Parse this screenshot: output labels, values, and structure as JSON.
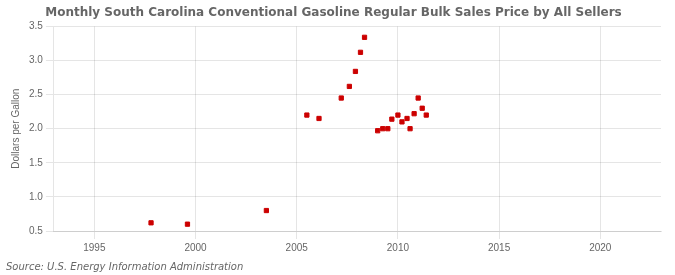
{
  "chart_data": {
    "type": "scatter",
    "title": "Monthly South Carolina Conventional Gasoline Regular Bulk Sales Price by All Sellers",
    "y_label": "Dollars per Gallon",
    "source": "Source: U.S. Energy Information Administration",
    "x": [
      1997.8,
      1999.6,
      2003.5,
      2005.5,
      2006.1,
      2007.2,
      2007.6,
      2007.9,
      2008.15,
      2008.35,
      2009.0,
      2009.25,
      2009.5,
      2009.7,
      2010.0,
      2010.2,
      2010.45,
      2010.6,
      2010.8,
      2011.0,
      2011.2,
      2011.4
    ],
    "values": [
      0.62,
      0.6,
      0.8,
      2.2,
      2.15,
      2.45,
      2.62,
      2.84,
      3.12,
      3.34,
      1.97,
      2.0,
      2.0,
      2.14,
      2.2,
      2.1,
      2.15,
      2.0,
      2.22,
      2.45,
      2.3,
      2.2
    ],
    "color": "#cc0000",
    "marker": "square",
    "xlim": [
      1993,
      2023
    ],
    "xticks": [
      1995,
      2000,
      2005,
      2010,
      2015,
      2020
    ],
    "ylim": [
      0.5,
      3.5
    ],
    "yticks": [
      0.5,
      {
        "value": 1.0,
        "label": "1.0"
      },
      1.5,
      {
        "value": 2.0,
        "label": "2.0"
      },
      2.5,
      {
        "value": 3.0,
        "label": "3.0"
      },
      3.5
    ],
    "grid": true
  }
}
